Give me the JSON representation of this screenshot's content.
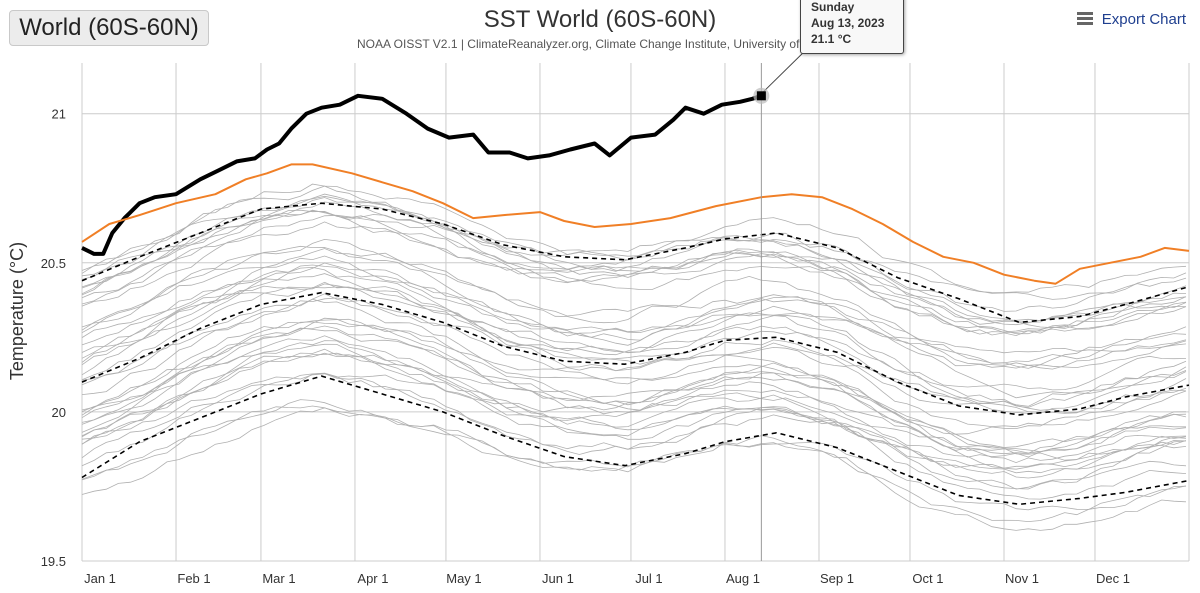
{
  "region_select": {
    "label": "World (60S-60N)"
  },
  "export": {
    "label": "Export Chart",
    "icon": "hamburger-menu-icon"
  },
  "tooltip": {
    "day": "Sunday",
    "date": "Aug 13, 2023",
    "value": "21.1 °C"
  },
  "colors": {
    "current_year": "#000000",
    "prior_year": "#f07f26",
    "history": "#b0b0b0",
    "stats": "#000000",
    "grid": "#cccccc"
  },
  "chart_data": {
    "type": "line",
    "title": "SST World (60S-60N)",
    "subtitle": "NOAA OISST V2.1 | ClimateReanalyzer.org, Climate Change Institute, University of Maine",
    "xlabel": "",
    "ylabel": "Temperature (°C)",
    "x_unit": "day of year",
    "x_ticks": [
      {
        "label": "Jan 1",
        "day": 1
      },
      {
        "label": "Feb 1",
        "day": 32
      },
      {
        "label": "Mar 1",
        "day": 60
      },
      {
        "label": "Apr 1",
        "day": 91
      },
      {
        "label": "May 1",
        "day": 121
      },
      {
        "label": "Jun 1",
        "day": 152
      },
      {
        "label": "Jul 1",
        "day": 182
      },
      {
        "label": "Aug 1",
        "day": 213
      },
      {
        "label": "Sep 1",
        "day": 244
      },
      {
        "label": "Oct 1",
        "day": 274
      },
      {
        "label": "Nov 1",
        "day": 305
      },
      {
        "label": "Dec 1",
        "day": 335
      }
    ],
    "xlim": [
      1,
      366
    ],
    "y_ticks": [
      19.5,
      20,
      20.5,
      21
    ],
    "ylim": [
      19.5,
      21.17
    ],
    "grid": true,
    "highlight": {
      "day": 225,
      "value": 21.06
    },
    "series": [
      {
        "style": "bold",
        "x": [
          1,
          5,
          8,
          11,
          15,
          20,
          25,
          32,
          40,
          46,
          52,
          58,
          62,
          66,
          70,
          75,
          80,
          86,
          92,
          100,
          108,
          115,
          122,
          130,
          135,
          142,
          148,
          155,
          162,
          170,
          175,
          182,
          190,
          196,
          200,
          206,
          212,
          218,
          222,
          225
        ],
        "values": [
          20.55,
          20.53,
          20.53,
          20.6,
          20.65,
          20.7,
          20.72,
          20.73,
          20.78,
          20.81,
          20.84,
          20.85,
          20.88,
          20.9,
          20.95,
          21.0,
          21.02,
          21.03,
          21.06,
          21.05,
          21.0,
          20.95,
          20.92,
          20.93,
          20.87,
          20.87,
          20.85,
          20.86,
          20.88,
          20.9,
          20.86,
          20.92,
          20.93,
          20.98,
          21.02,
          21.0,
          21.03,
          21.04,
          21.05,
          21.06
        ]
      },
      {
        "style": "orange",
        "x": [
          1,
          10,
          20,
          32,
          45,
          55,
          62,
          70,
          77,
          90,
          100,
          110,
          120,
          130,
          140,
          152,
          160,
          170,
          182,
          195,
          210,
          225,
          235,
          245,
          255,
          265,
          275,
          285,
          295,
          305,
          315,
          322,
          330,
          340,
          350,
          358,
          366
        ],
        "values": [
          20.57,
          20.63,
          20.66,
          20.7,
          20.73,
          20.78,
          20.8,
          20.83,
          20.83,
          20.8,
          20.77,
          20.74,
          20.7,
          20.65,
          20.66,
          20.67,
          20.64,
          20.62,
          20.63,
          20.65,
          20.69,
          20.72,
          20.73,
          20.72,
          20.68,
          20.63,
          20.57,
          20.52,
          20.5,
          20.46,
          20.44,
          20.43,
          20.48,
          20.5,
          20.52,
          20.55,
          20.54
        ]
      },
      {
        "style": "dashed",
        "x": [
          1,
          20,
          40,
          60,
          80,
          100,
          120,
          140,
          160,
          180,
          200,
          213,
          230,
          250,
          270,
          290,
          310,
          330,
          345,
          366
        ],
        "values": [
          20.44,
          20.52,
          20.6,
          20.68,
          20.7,
          20.68,
          20.63,
          20.56,
          20.52,
          20.51,
          20.55,
          20.58,
          20.6,
          20.55,
          20.45,
          20.38,
          20.3,
          20.32,
          20.36,
          20.42
        ]
      },
      {
        "style": "dashed",
        "x": [
          1,
          20,
          40,
          60,
          80,
          100,
          120,
          140,
          160,
          180,
          200,
          213,
          230,
          250,
          270,
          290,
          310,
          330,
          345,
          366
        ],
        "values": [
          20.1,
          20.18,
          20.28,
          20.36,
          20.4,
          20.36,
          20.3,
          20.22,
          20.17,
          20.16,
          20.2,
          20.24,
          20.25,
          20.2,
          20.1,
          20.02,
          19.99,
          20.01,
          20.05,
          20.09
        ]
      },
      {
        "style": "dashed",
        "x": [
          1,
          20,
          40,
          60,
          80,
          100,
          120,
          140,
          160,
          180,
          200,
          213,
          230,
          250,
          270,
          290,
          310,
          330,
          345,
          366
        ],
        "values": [
          19.78,
          19.9,
          19.98,
          20.06,
          20.12,
          20.06,
          20.0,
          19.92,
          19.85,
          19.82,
          19.86,
          19.9,
          19.93,
          19.88,
          19.8,
          19.72,
          19.69,
          19.71,
          19.73,
          19.77
        ]
      }
    ]
  }
}
